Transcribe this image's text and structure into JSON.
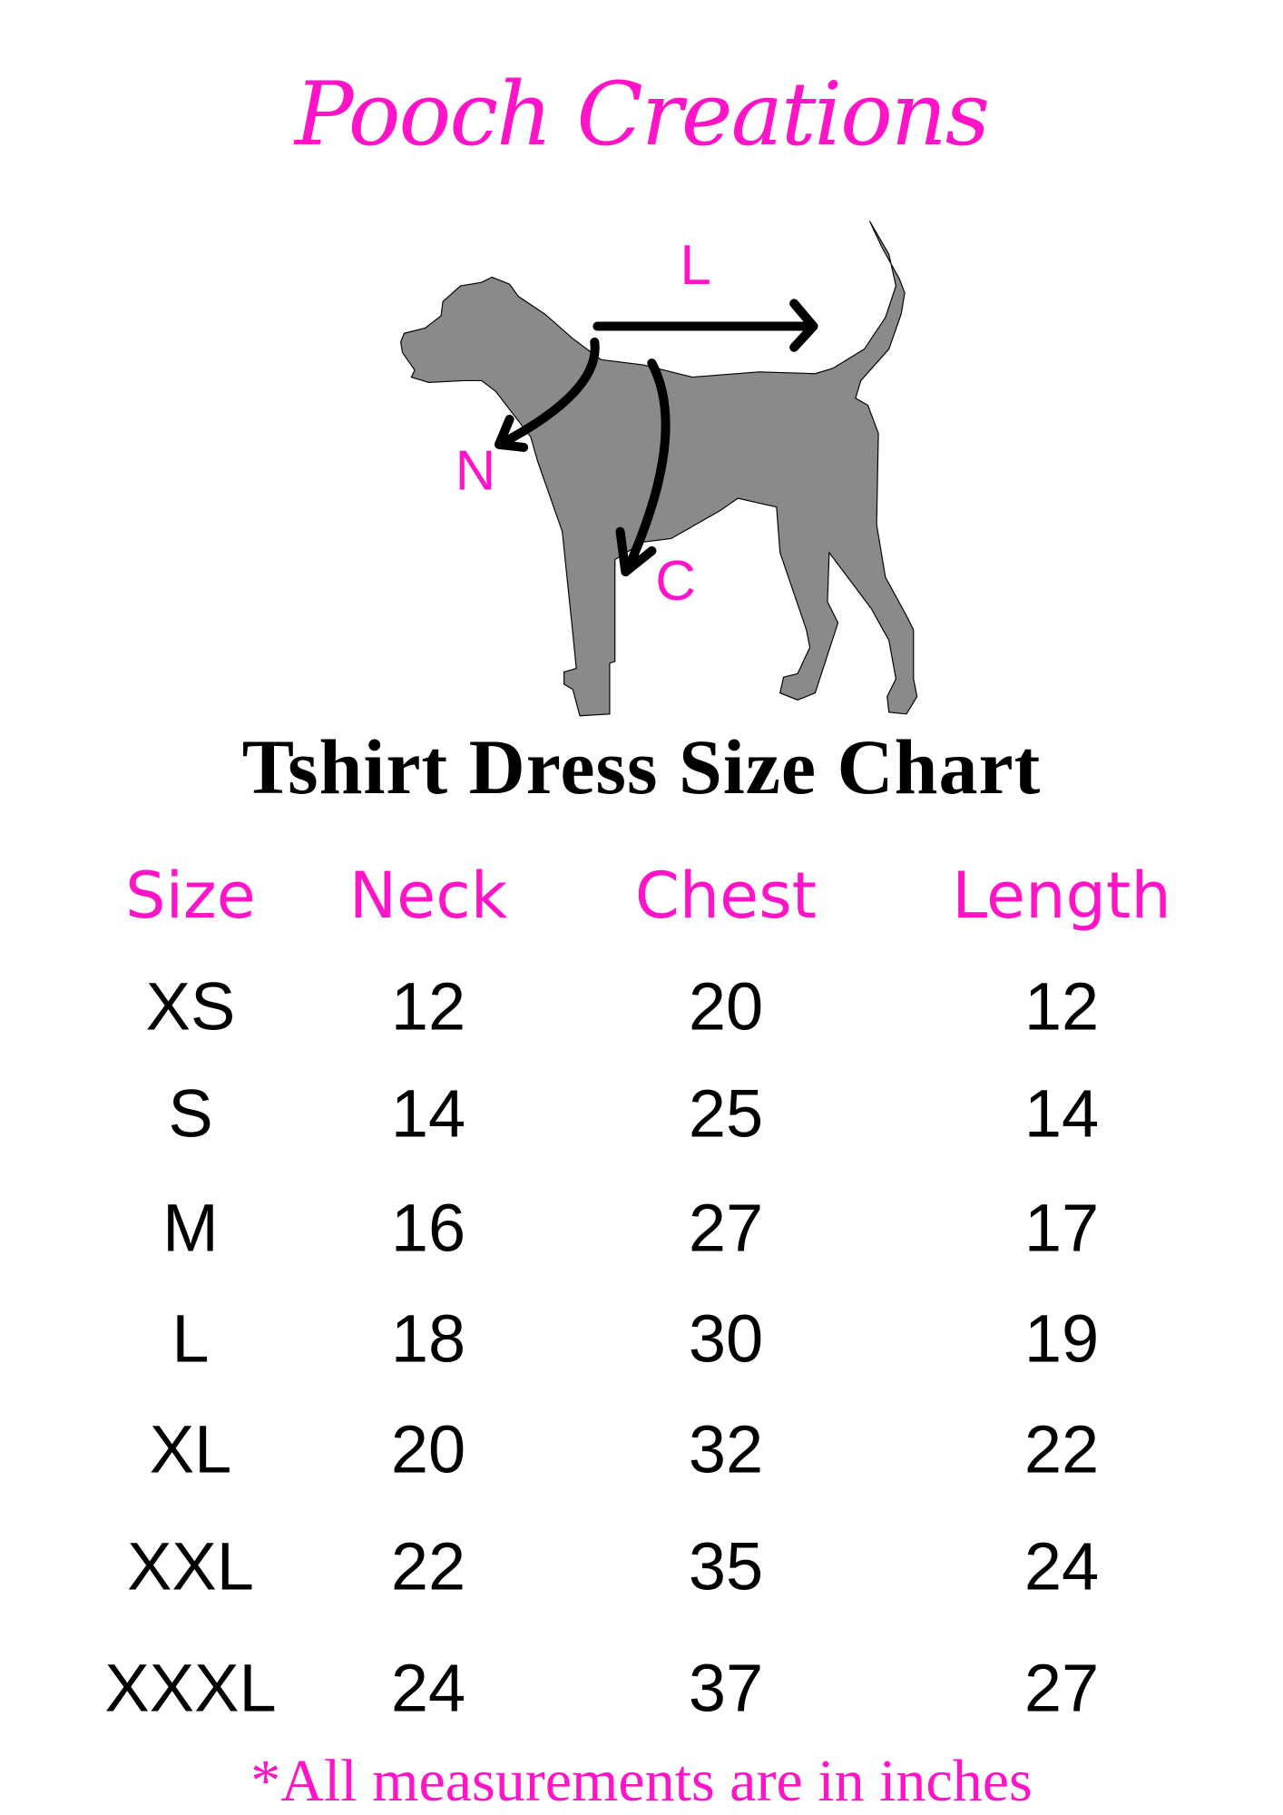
{
  "brand": "Pooch Creations",
  "diagram": {
    "length_label": "L",
    "neck_label": "N",
    "chest_label": "C",
    "dog_color": "#8c8a89",
    "accent": "#ff14c8"
  },
  "title": "Tshirt Dress Size Chart",
  "table": {
    "headers": [
      "Size",
      "Neck",
      "Chest",
      "Length"
    ],
    "rows": [
      [
        "XS",
        "12",
        "20",
        "12"
      ],
      [
        "S",
        "14",
        "25",
        "14"
      ],
      [
        "M",
        "16",
        "27",
        "17"
      ],
      [
        "L",
        "18",
        "30",
        "19"
      ],
      [
        "XL",
        "20",
        "32",
        "22"
      ],
      [
        "XXL",
        "22",
        "35",
        "24"
      ],
      [
        "XXXL",
        "24",
        "37",
        "27"
      ]
    ]
  },
  "footnote": "*All measurements are in inches"
}
